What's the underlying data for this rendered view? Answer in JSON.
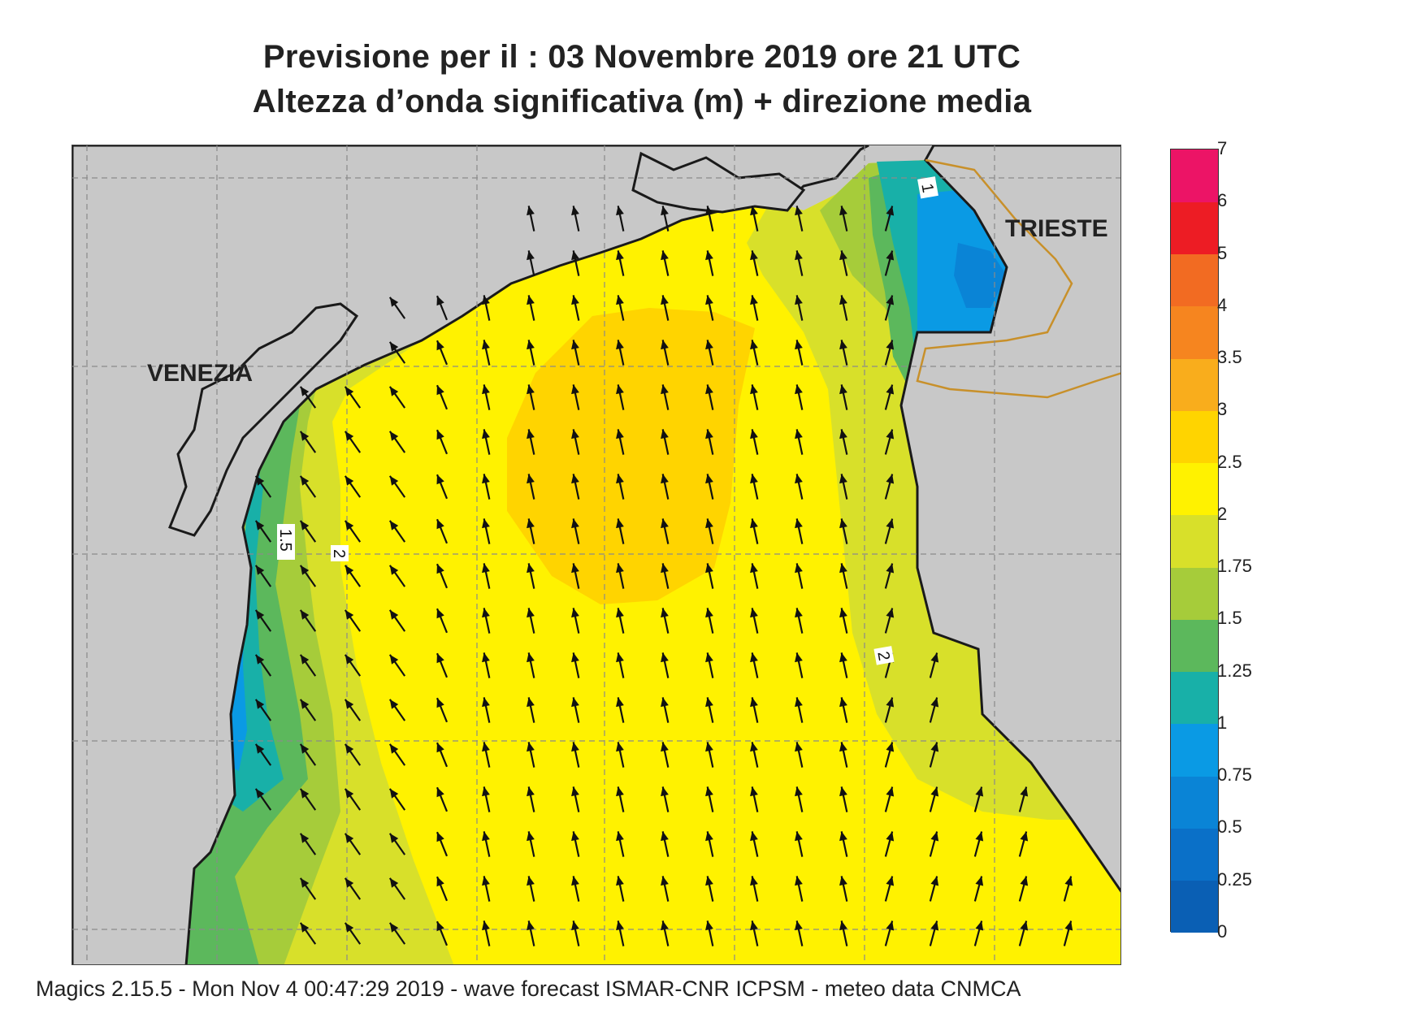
{
  "title_line1": "Previsione per il  :  03 Novembre  2019   ore 21 UTC",
  "title_line2": "Altezza d’onda significativa (m) + direzione media",
  "footer": "Magics 2.15.5 - Mon Nov  4 00:47:29 2019 - wave forecast  ISMAR-CNR  ICPSM - meteo data    CNMCA",
  "cities": [
    {
      "name": "VENEZIA"
    },
    {
      "name": "TRIESTE"
    }
  ],
  "contour_labels": [
    "1",
    "1.5",
    "2",
    "2"
  ],
  "colors": {
    "land": "#c8c8c8",
    "coast": "#1a1a1a",
    "border": "#c8902a",
    "arrow": "#111111",
    "grid": "#8a8a8a"
  },
  "legend": {
    "levels": [
      {
        "label": "0",
        "color": "#0a5fb4"
      },
      {
        "label": "0.25",
        "color": "#0a70c8"
      },
      {
        "label": "0.5",
        "color": "#0a84d6"
      },
      {
        "label": "0.75",
        "color": "#0a9ae4"
      },
      {
        "label": "1",
        "color": "#18b0a8"
      },
      {
        "label": "1.25",
        "color": "#5cb85c"
      },
      {
        "label": "1.5",
        "color": "#a6cc3a"
      },
      {
        "label": "1.75",
        "color": "#d8e02a"
      },
      {
        "label": "2",
        "color": "#fff200"
      },
      {
        "label": "2.5",
        "color": "#ffd400"
      },
      {
        "label": "3",
        "color": "#f9ad1c"
      },
      {
        "label": "3.5",
        "color": "#f6851f"
      },
      {
        "label": "4",
        "color": "#f26b22"
      },
      {
        "label": "5",
        "color": "#ed1c24"
      },
      {
        "label": "6",
        "color": "#ec1466"
      },
      {
        "label": "7",
        "color": ""
      }
    ]
  },
  "wave_direction_deg": -12
}
